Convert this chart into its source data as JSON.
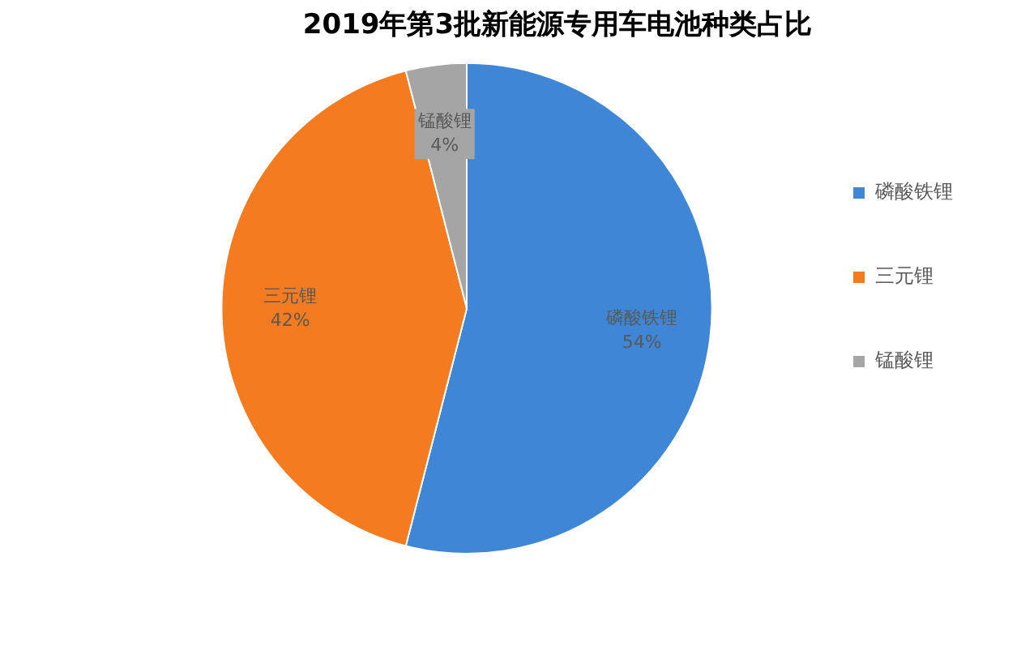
{
  "chart_data": {
    "type": "pie",
    "title": "2019年第3批新能源专用车电池种类占比",
    "categories": [
      "磷酸铁锂",
      "三元锂",
      "锰酸锂"
    ],
    "values": [
      54,
      42,
      4
    ],
    "colors": [
      "#3f87d6",
      "#f47b20",
      "#a5a5a5"
    ],
    "value_labels": [
      "54%",
      "42%",
      "4%"
    ],
    "legend": "right"
  }
}
